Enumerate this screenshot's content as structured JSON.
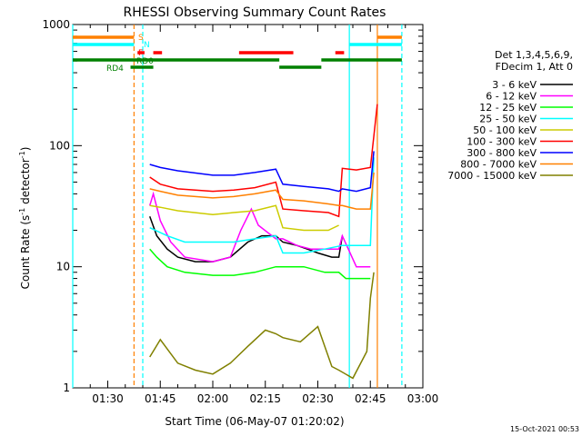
{
  "chart_data": {
    "type": "line",
    "title": "RHESSI Observing Summary Count Rates",
    "xlabel": "Start Time (06-May-07 01:20:02)",
    "ylabel_main": "Count Rate (s",
    "ylabel_sup": "-1",
    "ylabel_mid": " detector",
    "ylabel_tail": ")",
    "y_scale": "log",
    "ylim": [
      1,
      1000
    ],
    "y_ticks": [
      {
        "v": 1,
        "label": "1"
      },
      {
        "v": 10,
        "label": "10"
      },
      {
        "v": 100,
        "label": "100"
      },
      {
        "v": 1000,
        "label": "1000"
      }
    ],
    "xlim": [
      "01:20:00",
      "03:00:00"
    ],
    "x_ticks": [
      "01:30",
      "01:45",
      "02:00",
      "02:15",
      "02:30",
      "02:45",
      "03:00"
    ],
    "legend_header": [
      "Det 1,3,4,5,6,9,",
      "FDecim 1, Att 0"
    ],
    "legend_placement": "right",
    "footer_timestamp": "15-Oct-2021 00:53",
    "flag_labels": {
      "saa": "S",
      "night": "N",
      "flare": "F",
      "rd0": "RD0",
      "rd4": "RD4"
    },
    "series": [
      {
        "name": "3 - 6 keV",
        "color": "#000000",
        "x": [
          "01:42",
          "01:44",
          "01:47",
          "01:50",
          "01:55",
          "02:00",
          "02:05",
          "02:10",
          "02:14",
          "02:18",
          "02:20",
          "02:24",
          "02:27",
          "02:30",
          "02:34",
          "02:36",
          "02:37"
        ],
        "y": [
          26,
          18,
          14,
          12,
          11,
          11,
          12,
          16,
          18,
          18,
          16,
          15,
          14,
          13,
          12,
          12,
          18
        ]
      },
      {
        "name": "6 - 12 keV",
        "color": "#ff00ff",
        "x": [
          "01:42",
          "01:43",
          "01:45",
          "01:48",
          "01:52",
          "02:00",
          "02:05",
          "02:08",
          "02:11",
          "02:13",
          "02:18",
          "02:20",
          "02:24",
          "02:28",
          "02:33",
          "02:36",
          "02:37",
          "02:41",
          "02:45"
        ],
        "y": [
          32,
          40,
          24,
          16,
          12,
          11,
          12,
          20,
          30,
          22,
          17,
          17,
          15,
          14,
          14,
          14,
          18,
          10,
          10
        ]
      },
      {
        "name": "12 - 25 keV",
        "color": "#00ff00",
        "x": [
          "01:42",
          "01:44",
          "01:47",
          "01:52",
          "02:00",
          "02:06",
          "02:12",
          "02:18",
          "02:20",
          "02:26",
          "02:32",
          "02:36",
          "02:38",
          "02:45"
        ],
        "y": [
          14,
          12,
          10,
          9,
          8.5,
          8.5,
          9,
          10,
          10,
          10,
          9,
          9,
          8,
          8
        ]
      },
      {
        "name": "25 - 50 keV",
        "color": "#00ffff",
        "x": [
          "01:42",
          "01:47",
          "01:52",
          "02:00",
          "02:06",
          "02:12",
          "02:18",
          "02:20",
          "02:26",
          "02:32",
          "02:37",
          "02:41",
          "02:45",
          "02:46"
        ],
        "y": [
          21,
          18,
          16,
          16,
          16,
          17,
          18,
          13,
          13,
          14,
          15,
          15,
          15,
          80
        ]
      },
      {
        "name": "50 - 100 keV",
        "color": "#cccc00",
        "x": [
          "01:42",
          "01:45",
          "01:50",
          "02:00",
          "02:06",
          "02:12",
          "02:18",
          "02:20",
          "02:26",
          "02:33",
          "02:36"
        ],
        "y": [
          32,
          31,
          29,
          27,
          28,
          29,
          32,
          21,
          20,
          20,
          22
        ]
      },
      {
        "name": "100 - 300 keV",
        "color": "#ff0000",
        "x": [
          "01:42",
          "01:45",
          "01:50",
          "02:00",
          "02:06",
          "02:12",
          "02:18",
          "02:20",
          "02:26",
          "02:33",
          "02:36",
          "02:37",
          "02:41",
          "02:45",
          "02:46",
          "02:47"
        ],
        "y": [
          55,
          48,
          44,
          42,
          43,
          45,
          50,
          30,
          29,
          28,
          26,
          65,
          63,
          66,
          120,
          220
        ]
      },
      {
        "name": "300 - 800 keV",
        "color": "#0000ff",
        "x": [
          "01:42",
          "01:45",
          "01:50",
          "02:00",
          "02:06",
          "02:12",
          "02:18",
          "02:20",
          "02:26",
          "02:33",
          "02:36",
          "02:37",
          "02:41",
          "02:45",
          "02:46"
        ],
        "y": [
          70,
          66,
          62,
          57,
          57,
          60,
          64,
          48,
          46,
          44,
          42,
          44,
          42,
          45,
          90
        ]
      },
      {
        "name": "800 - 7000 keV",
        "color": "#ff8000",
        "x": [
          "01:42",
          "01:45",
          "01:50",
          "02:00",
          "02:06",
          "02:12",
          "02:18",
          "02:20",
          "02:26",
          "02:33",
          "02:36",
          "02:37",
          "02:41",
          "02:45",
          "02:46"
        ],
        "y": [
          44,
          42,
          39,
          37,
          38,
          40,
          43,
          36,
          35,
          33,
          32,
          32,
          30,
          30,
          60
        ]
      },
      {
        "name": "7000 - 15000 keV",
        "color": "#808000",
        "x": [
          "01:42",
          "01:45",
          "01:50",
          "01:55",
          "02:00",
          "02:05",
          "02:10",
          "02:15",
          "02:18",
          "02:20",
          "02:25",
          "02:30",
          "02:34",
          "02:36",
          "02:40",
          "02:44",
          "02:45",
          "02:46"
        ],
        "y": [
          1.8,
          2.5,
          1.6,
          1.4,
          1.3,
          1.6,
          2.2,
          3.0,
          2.8,
          2.6,
          2.4,
          3.2,
          1.5,
          1.4,
          1.2,
          2.0,
          5.5,
          9
        ]
      }
    ],
    "vertical_lines": [
      {
        "x": "01:20:00",
        "color": "#00ffff",
        "style": "solid"
      },
      {
        "x": "01:37:30",
        "color": "#ff8000",
        "style": "dashed"
      },
      {
        "x": "01:40:00",
        "color": "#00ffff",
        "style": "dashed"
      },
      {
        "x": "02:39:00",
        "color": "#00ffff",
        "style": "solid"
      },
      {
        "x": "02:47:00",
        "color": "#ff8000",
        "style": "solid"
      },
      {
        "x": "02:54:00",
        "color": "#00ffff",
        "style": "dashed"
      }
    ],
    "flag_bars": [
      {
        "label_key": "saa",
        "color": "#ff8000",
        "segments": [
          [
            "01:20:00",
            "01:37:30"
          ],
          [
            "02:47:00",
            "02:54:00"
          ]
        ]
      },
      {
        "label_key": "night",
        "color": "#00ffff",
        "segments": [
          [
            "01:20:00",
            "01:37:30"
          ],
          [
            "02:39:00",
            "02:54:00"
          ]
        ]
      },
      {
        "label_key": "flare",
        "color": "#ff0000",
        "segments": [
          [
            "01:38:30",
            "01:40:30"
          ],
          [
            "01:43:00",
            "01:45:30"
          ],
          [
            "02:07:30",
            "02:23:00"
          ],
          [
            "02:35:00",
            "02:37:30"
          ]
        ]
      },
      {
        "label_key": "rd0",
        "color": "#008000",
        "segments": [
          [
            "01:20:00",
            "02:19:00"
          ],
          [
            "02:31:00",
            "02:54:00"
          ]
        ]
      },
      {
        "label_key": "rd4",
        "color": "#008000",
        "segments": [
          [
            "01:36:30",
            "01:43:00"
          ],
          [
            "02:19:00",
            "02:31:00"
          ]
        ]
      }
    ]
  }
}
